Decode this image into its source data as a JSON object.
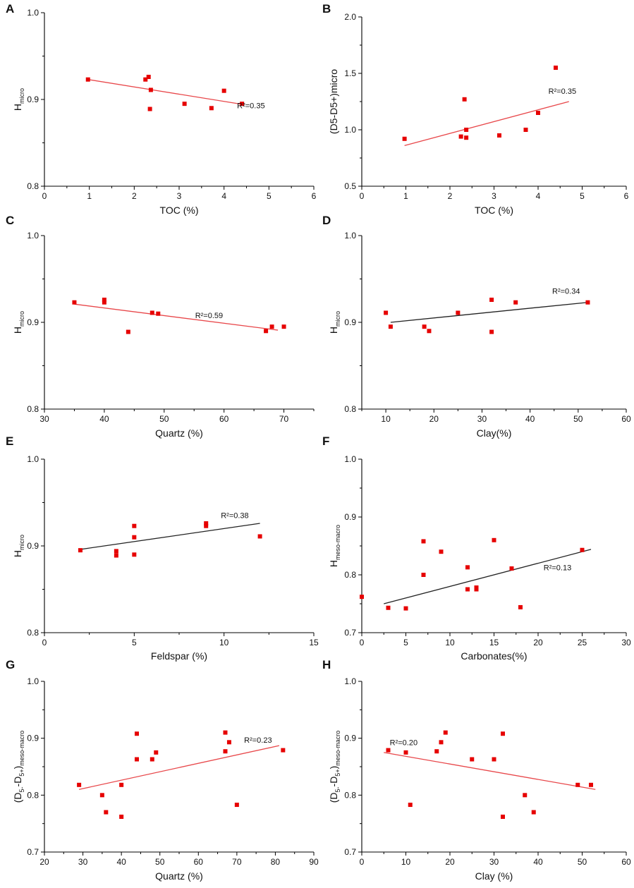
{
  "colors": {
    "marker": "#e60000",
    "fit_red": "#e8474a",
    "fit_black": "#222222",
    "axis": "#000000"
  },
  "chart_data": [
    {
      "panel": "A",
      "type": "scatter",
      "xlabel": "TOC (%)",
      "ylabel": {
        "main": "H",
        "sub": "micro"
      },
      "xlim": [
        0,
        6
      ],
      "ylim": [
        0.8,
        1.0
      ],
      "xticks": [
        "0",
        "1",
        "2",
        "3",
        "4",
        "5",
        "6"
      ],
      "yticks": [
        "0.8",
        "0.9",
        "1.0"
      ],
      "points": [
        [
          0.97,
          0.923
        ],
        [
          2.25,
          0.923
        ],
        [
          2.32,
          0.926
        ],
        [
          2.37,
          0.911
        ],
        [
          2.35,
          0.889
        ],
        [
          3.12,
          0.895
        ],
        [
          3.72,
          0.89
        ],
        [
          4.0,
          0.91
        ],
        [
          4.4,
          0.895
        ]
      ],
      "fit": {
        "x": [
          0.97,
          4.45
        ],
        "y": [
          0.923,
          0.894
        ],
        "color": "red"
      },
      "r2": {
        "text": "R²=0.35",
        "x": 4.6,
        "y": 0.89
      }
    },
    {
      "panel": "B",
      "type": "scatter",
      "xlabel": "TOC (%)",
      "ylabel": {
        "main": "(D5-D5+)micro"
      },
      "xlim": [
        0,
        6
      ],
      "ylim": [
        0.5,
        2.0
      ],
      "xticks": [
        "0",
        "1",
        "2",
        "3",
        "4",
        "5",
        "6"
      ],
      "yticks": [
        "0.5",
        "1.0",
        "1.5",
        "2.0"
      ],
      "points": [
        [
          0.97,
          0.92
        ],
        [
          2.25,
          0.94
        ],
        [
          2.33,
          1.27
        ],
        [
          2.37,
          1.0
        ],
        [
          2.37,
          0.93
        ],
        [
          3.12,
          0.95
        ],
        [
          3.72,
          1.0
        ],
        [
          4.0,
          1.15
        ],
        [
          4.4,
          1.55
        ]
      ],
      "fit": {
        "x": [
          0.97,
          4.7
        ],
        "y": [
          0.86,
          1.25
        ],
        "color": "red"
      },
      "r2": {
        "text": "R²=0.35",
        "x": 4.55,
        "y": 1.32
      }
    },
    {
      "panel": "C",
      "type": "scatter",
      "xlabel": "Quartz (%)",
      "ylabel": {
        "main": "H",
        "sub": "micro"
      },
      "xlim": [
        30,
        75
      ],
      "ylim": [
        0.8,
        1.0
      ],
      "xticks": [
        "30",
        "40",
        "50",
        "60",
        "70"
      ],
      "yticks": [
        "0.8",
        "0.9",
        "1.0"
      ],
      "points": [
        [
          35,
          0.923
        ],
        [
          40,
          0.926
        ],
        [
          40,
          0.923
        ],
        [
          44,
          0.889
        ],
        [
          48,
          0.911
        ],
        [
          49,
          0.91
        ],
        [
          67,
          0.89
        ],
        [
          68,
          0.895
        ],
        [
          70,
          0.895
        ]
      ],
      "fit": {
        "x": [
          35,
          69
        ],
        "y": [
          0.921,
          0.891
        ],
        "color": "red"
      },
      "r2": {
        "text": "R²=0.59",
        "x": 57.5,
        "y": 0.905
      }
    },
    {
      "panel": "D",
      "type": "scatter",
      "xlabel": "Clay(%)",
      "ylabel": {
        "main": "H",
        "sub": "micro"
      },
      "xlim": [
        5,
        60
      ],
      "ylim": [
        0.8,
        1.0
      ],
      "xticks": [
        "10",
        "20",
        "30",
        "40",
        "50",
        "60"
      ],
      "yticks": [
        "0.8",
        "0.9",
        "1.0"
      ],
      "points": [
        [
          10,
          0.911
        ],
        [
          11,
          0.895
        ],
        [
          18,
          0.895
        ],
        [
          19,
          0.89
        ],
        [
          25,
          0.911
        ],
        [
          32,
          0.926
        ],
        [
          32,
          0.889
        ],
        [
          37,
          0.923
        ],
        [
          52,
          0.923
        ]
      ],
      "fit": {
        "x": [
          11,
          52
        ],
        "y": [
          0.9,
          0.923
        ],
        "color": "black"
      },
      "r2": {
        "text": "R²=0.34",
        "x": 47.5,
        "y": 0.933
      }
    },
    {
      "panel": "E",
      "type": "scatter",
      "xlabel": "Feldspar (%)",
      "ylabel": {
        "main": "H",
        "sub": "micro"
      },
      "xlim": [
        0,
        15
      ],
      "ylim": [
        0.8,
        1.0
      ],
      "xticks": [
        "0",
        "5",
        "10",
        "15"
      ],
      "yticks": [
        "0.8",
        "0.9",
        "1.0"
      ],
      "points": [
        [
          2,
          0.895
        ],
        [
          4,
          0.894
        ],
        [
          4,
          0.889
        ],
        [
          5,
          0.923
        ],
        [
          5,
          0.91
        ],
        [
          5,
          0.89
        ],
        [
          9,
          0.926
        ],
        [
          9,
          0.923
        ],
        [
          12,
          0.911
        ]
      ],
      "fit": {
        "x": [
          2,
          12
        ],
        "y": [
          0.896,
          0.926
        ],
        "color": "black"
      },
      "r2": {
        "text": "R²=0.38",
        "x": 10.6,
        "y": 0.932
      }
    },
    {
      "panel": "F",
      "type": "scatter",
      "xlabel": "Carbonates(%)",
      "ylabel": {
        "main": "H",
        "sub": "meso-macro"
      },
      "xlim": [
        0,
        30
      ],
      "ylim": [
        0.7,
        1.0
      ],
      "xticks": [
        "0",
        "5",
        "10",
        "15",
        "20",
        "25",
        "30"
      ],
      "yticks": [
        "0.7",
        "0.8",
        "0.9",
        "1.0"
      ],
      "points": [
        [
          0,
          0.762
        ],
        [
          3,
          0.743
        ],
        [
          5,
          0.742
        ],
        [
          7,
          0.858
        ],
        [
          7,
          0.8
        ],
        [
          9,
          0.84
        ],
        [
          12,
          0.813
        ],
        [
          12,
          0.775
        ],
        [
          13,
          0.778
        ],
        [
          13,
          0.775
        ],
        [
          15,
          0.86
        ],
        [
          17,
          0.811
        ],
        [
          18,
          0.744
        ],
        [
          25,
          0.843
        ]
      ],
      "fit": {
        "x": [
          2.5,
          26
        ],
        "y": [
          0.75,
          0.844
        ],
        "color": "black"
      },
      "r2": {
        "text": "R²=0.13",
        "x": 22.2,
        "y": 0.808
      }
    },
    {
      "panel": "G",
      "type": "scatter",
      "xlabel": "Quartz (%)",
      "ylabel": {
        "main": "(D",
        "sub1": "5-",
        "mid": "-D",
        "sub2": "5+",
        "end": ")",
        "sub3": "meso-macro"
      },
      "xlim": [
        20,
        90
      ],
      "ylim": [
        0.7,
        1.0
      ],
      "xticks": [
        "20",
        "30",
        "40",
        "50",
        "60",
        "70",
        "80",
        "90"
      ],
      "yticks": [
        "0.7",
        "0.8",
        "0.9",
        "1.0"
      ],
      "points": [
        [
          29,
          0.818
        ],
        [
          35,
          0.8
        ],
        [
          36,
          0.77
        ],
        [
          40,
          0.818
        ],
        [
          40,
          0.762
        ],
        [
          44,
          0.908
        ],
        [
          44,
          0.863
        ],
        [
          48,
          0.863
        ],
        [
          49,
          0.875
        ],
        [
          67,
          0.91
        ],
        [
          67,
          0.877
        ],
        [
          68,
          0.893
        ],
        [
          70,
          0.783
        ],
        [
          82,
          0.879
        ]
      ],
      "fit": {
        "x": [
          29,
          81
        ],
        "y": [
          0.81,
          0.887
        ],
        "color": "red"
      },
      "r2": {
        "text": "R²=0.23",
        "x": 75.5,
        "y": 0.892
      }
    },
    {
      "panel": "H",
      "type": "scatter",
      "xlabel": "Clay (%)",
      "ylabel": {
        "main": "(D",
        "sub1": "5-",
        "mid": "-D",
        "sub2": "5+",
        "end": ")",
        "sub3": "meso-macro"
      },
      "xlim": [
        0,
        60
      ],
      "ylim": [
        0.7,
        1.0
      ],
      "xticks": [
        "0",
        "10",
        "20",
        "30",
        "40",
        "50",
        "60"
      ],
      "yticks": [
        "0.7",
        "0.8",
        "0.9",
        "1.0"
      ],
      "points": [
        [
          6,
          0.879
        ],
        [
          10,
          0.875
        ],
        [
          11,
          0.783
        ],
        [
          17,
          0.877
        ],
        [
          18,
          0.893
        ],
        [
          19,
          0.91
        ],
        [
          25,
          0.863
        ],
        [
          30,
          0.863
        ],
        [
          32,
          0.762
        ],
        [
          32,
          0.908
        ],
        [
          37,
          0.8
        ],
        [
          39,
          0.77
        ],
        [
          49,
          0.818
        ],
        [
          52,
          0.818
        ]
      ],
      "fit": {
        "x": [
          5,
          53
        ],
        "y": [
          0.875,
          0.81
        ],
        "color": "red"
      },
      "r2": {
        "text": "R²=0.20",
        "x": 9.5,
        "y": 0.888
      }
    }
  ]
}
